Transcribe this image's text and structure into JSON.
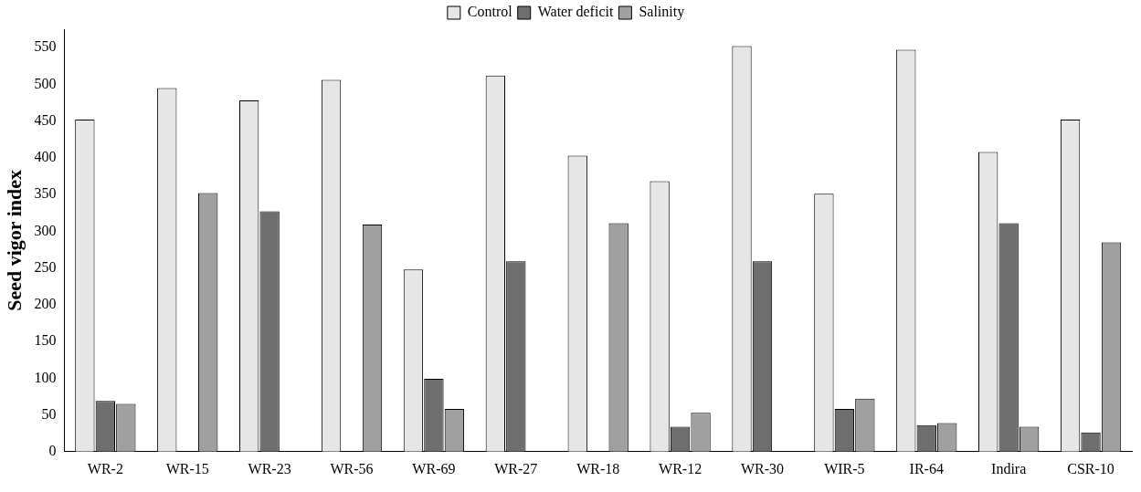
{
  "chart_data": {
    "type": "bar",
    "ylabel": "Seed vigor index",
    "categories": [
      "WR-2",
      "WR-15",
      "WR-23",
      "WR-56",
      "WR-69",
      "WR-27",
      "WR-18",
      "WR-12",
      "WR-30",
      "WIR-5",
      "IR-64",
      "Indira",
      "CSR-10"
    ],
    "series": [
      {
        "name": "Control",
        "color": "#e6e6e6",
        "values": [
          452,
          495,
          478,
          506,
          248,
          512,
          403,
          368,
          552,
          351,
          547,
          408,
          452
        ]
      },
      {
        "name": "Water deficit",
        "color": "#6e6e6e",
        "values": [
          69,
          null,
          327,
          null,
          99,
          259,
          null,
          34,
          259,
          58,
          36,
          311,
          26
        ]
      },
      {
        "name": "Salinity",
        "color": "#a0a0a0",
        "values": [
          65,
          352,
          null,
          309,
          58,
          null,
          311,
          53,
          null,
          72,
          39,
          34,
          285
        ]
      }
    ],
    "ylim": [
      0,
      575
    ],
    "yticks": [
      0,
      50,
      100,
      150,
      200,
      250,
      300,
      350,
      400,
      450,
      500,
      550
    ],
    "grid": false,
    "legend": "top"
  }
}
